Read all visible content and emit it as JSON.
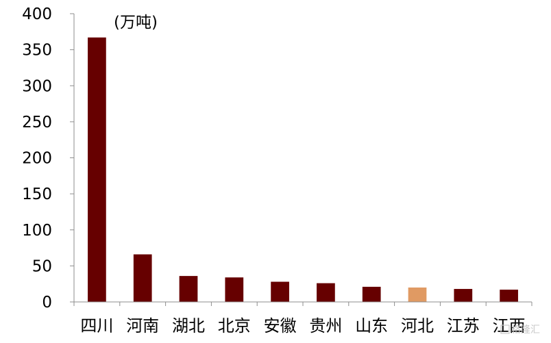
{
  "chart_data": {
    "type": "bar",
    "title": "",
    "unit_label": "(万吨)",
    "xlabel": "",
    "ylabel": "",
    "categories": [
      "四川",
      "河南",
      "湖北",
      "北京",
      "安徽",
      "贵州",
      "山东",
      "河北",
      "江苏",
      "江西"
    ],
    "values": [
      367,
      66,
      36,
      34,
      28,
      26,
      21,
      20,
      18,
      17
    ],
    "ylim": [
      0,
      400
    ],
    "yticks": [
      0,
      50,
      100,
      150,
      200,
      250,
      300,
      350,
      400
    ],
    "grid": false,
    "legend": "none",
    "colors": {
      "default": "#660000",
      "highlight": "#E09A63",
      "axis": "#8C8C8C"
    },
    "highlight_category": "河北"
  },
  "watermark": {
    "text": "格隆汇"
  }
}
